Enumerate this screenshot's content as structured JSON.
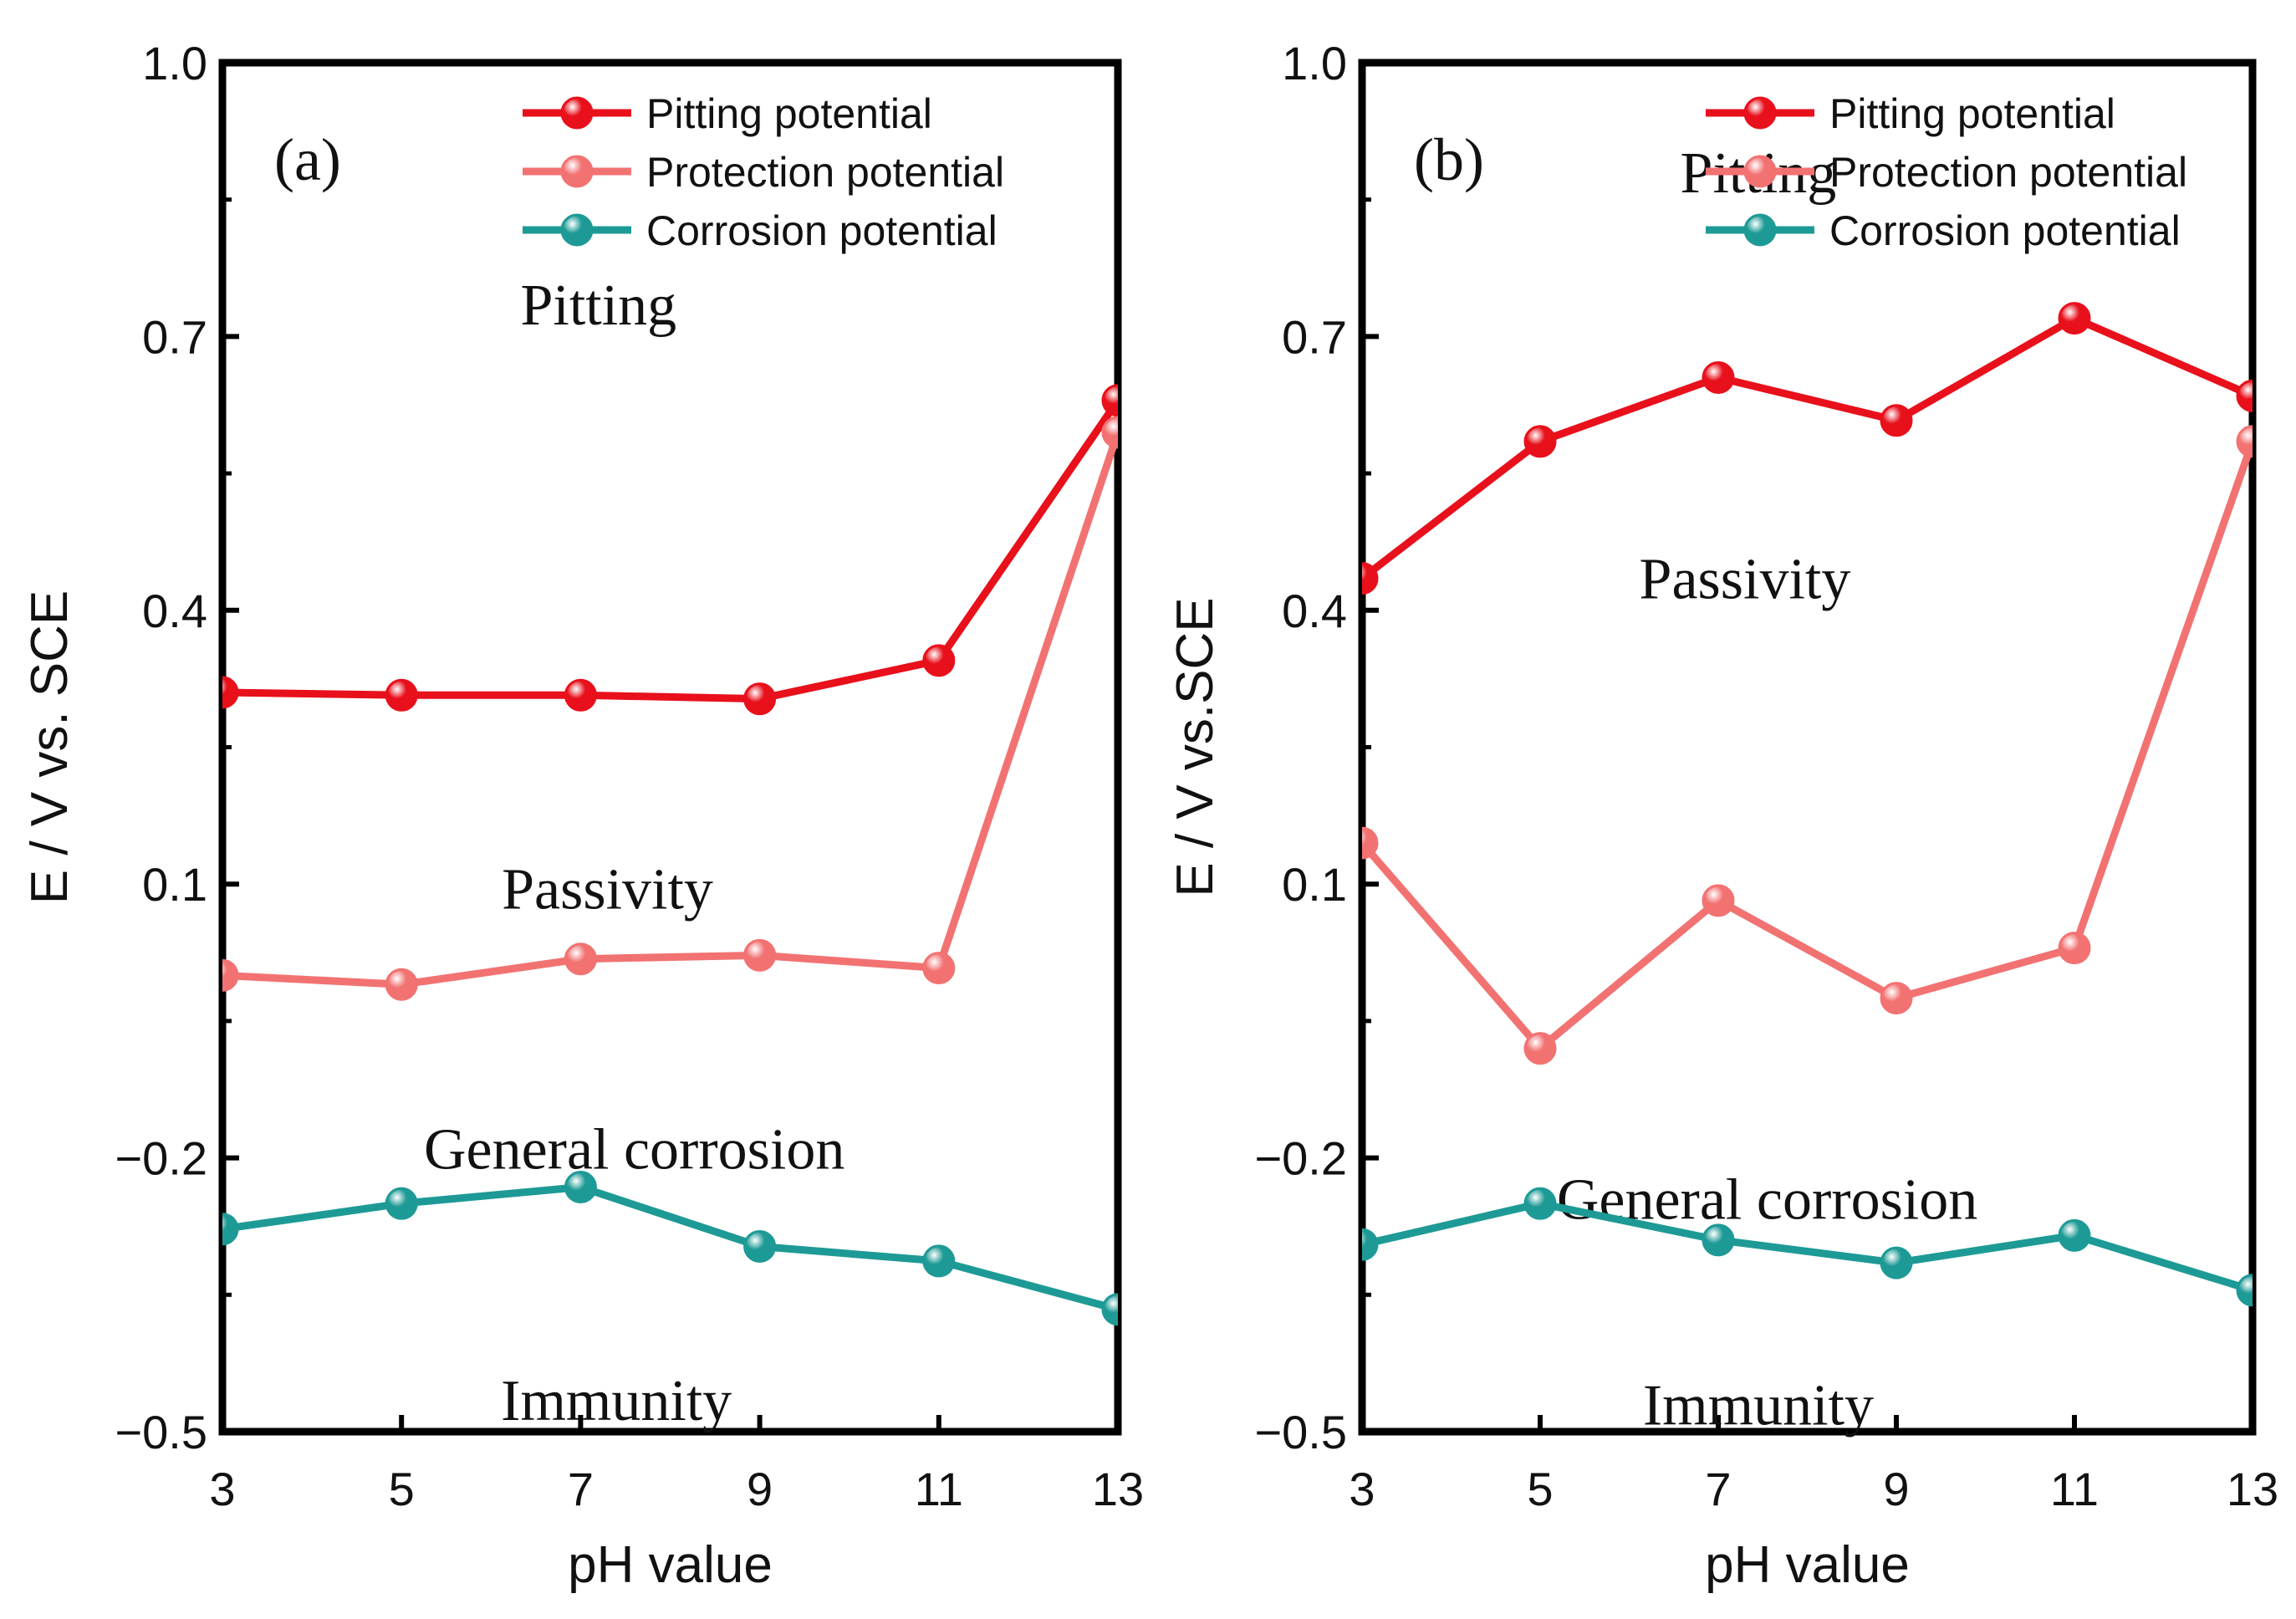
{
  "chart_data": [
    {
      "type": "line",
      "panel_label": "(a)",
      "xlabel": "pH value",
      "ylabel": "E / V vs. SCE",
      "x": [
        3,
        5,
        7,
        9,
        11,
        13
      ],
      "xticks": [
        "3",
        "5",
        "7",
        "9",
        "11",
        "13"
      ],
      "yticks": [
        "−0.5",
        "−0.2",
        "0.1",
        "0.4",
        "0.7",
        "1.0"
      ],
      "ylim": [
        -0.5,
        1.0
      ],
      "legend_position": "top-right",
      "series": [
        {
          "name": "Pitting potential",
          "color": "#e8101b",
          "values": [
            0.31,
            0.307,
            0.307,
            0.303,
            0.345,
            0.63
          ]
        },
        {
          "name": "Protection potential",
          "color": "#f27272",
          "values": [
            -0.0,
            -0.01,
            0.018,
            0.022,
            0.008,
            0.595
          ]
        },
        {
          "name": "Corrosion potential",
          "color": "#1e9a96",
          "values": [
            -0.278,
            -0.25,
            -0.232,
            -0.297,
            -0.313,
            -0.366
          ]
        }
      ],
      "regions": [
        {
          "text": "Pitting",
          "x": 7.2,
          "y": 0.735
        },
        {
          "text": "Passivity",
          "x": 7.3,
          "y": 0.095
        },
        {
          "text": "General corrosion",
          "x": 7.6,
          "y": -0.19
        },
        {
          "text": "Immunity",
          "x": 7.4,
          "y": -0.465
        }
      ]
    },
    {
      "type": "line",
      "panel_label": "(b)",
      "xlabel": "pH value",
      "ylabel": "E / V vs.SCE",
      "x": [
        3,
        5,
        7,
        9,
        11,
        13
      ],
      "xticks": [
        "3",
        "5",
        "7",
        "9",
        "11",
        "13"
      ],
      "yticks": [
        "−0.5",
        "−0.2",
        "0.1",
        "0.4",
        "0.7",
        "1.0"
      ],
      "ylim": [
        -0.5,
        1.0
      ],
      "legend_position": "top-right",
      "series": [
        {
          "name": "Pitting potential",
          "color": "#e8101b",
          "values": [
            0.435,
            0.585,
            0.655,
            0.608,
            0.72,
            0.635
          ]
        },
        {
          "name": "Protection potential",
          "color": "#f27272",
          "values": [
            0.145,
            -0.08,
            0.082,
            -0.025,
            0.03,
            0.585
          ]
        },
        {
          "name": "Corrosion potential",
          "color": "#1e9a96",
          "values": [
            -0.295,
            -0.25,
            -0.29,
            -0.315,
            -0.285,
            -0.345
          ]
        }
      ],
      "regions": [
        {
          "text": "Pitting",
          "x": 7.45,
          "y": 0.88
        },
        {
          "text": "Passivity",
          "x": 7.3,
          "y": 0.435
        },
        {
          "text": "General corrosion",
          "x": 7.55,
          "y": -0.245
        },
        {
          "text": "Immunity",
          "x": 7.45,
          "y": -0.47
        }
      ]
    }
  ]
}
